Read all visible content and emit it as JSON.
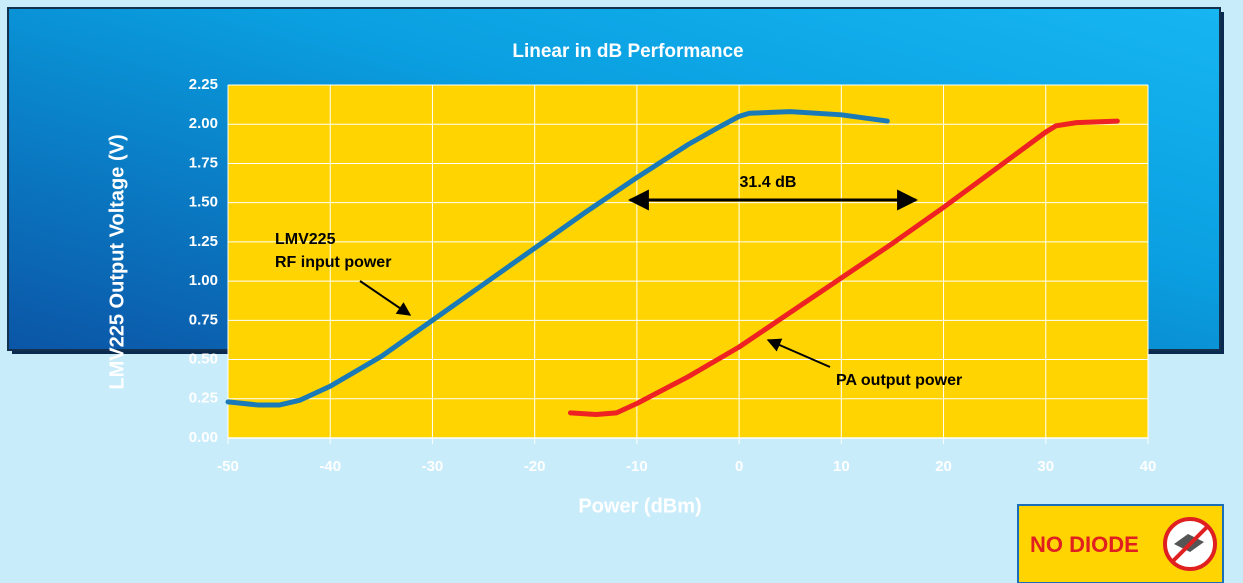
{
  "chart_data": {
    "type": "line",
    "title": "Linear in dB Performance",
    "xlabel": "Power (dBm)",
    "ylabel": "LMV225 Output Voltage (V)",
    "xlim": [
      -50,
      40
    ],
    "ylim": [
      0,
      2.25
    ],
    "xticks": [
      -50,
      -40,
      -30,
      -20,
      -10,
      0,
      10,
      20,
      30,
      40
    ],
    "yticks": [
      {
        "value": 0,
        "label": "0.00"
      },
      {
        "value": 0.25,
        "label": "0.25"
      },
      {
        "value": 0.5,
        "label": "0.50"
      },
      {
        "value": 0.75,
        "label": "0.75"
      },
      {
        "value": 1,
        "label": "1.00"
      },
      {
        "value": 1.25,
        "label": "1.25"
      },
      {
        "value": 1.5,
        "label": "1.50"
      },
      {
        "value": 1.75,
        "label": "1.75"
      },
      {
        "value": 2,
        "label": "2.00"
      },
      {
        "value": 2.25,
        "label": "2.25"
      }
    ],
    "grid": true,
    "series": [
      {
        "color": "#1a7ab8",
        "x": [
          -50,
          -47,
          -45,
          -43,
          -40,
          -35,
          -30,
          -25,
          -20,
          -15,
          -10,
          -5,
          -2,
          0,
          1,
          5,
          10,
          14.5
        ],
        "values": [
          0.23,
          0.21,
          0.21,
          0.24,
          0.33,
          0.52,
          0.75,
          0.98,
          1.21,
          1.44,
          1.66,
          1.87,
          1.98,
          2.05,
          2.07,
          2.08,
          2.06,
          2.02
        ]
      },
      {
        "color": "#ee2222",
        "x": [
          -16.5,
          -14,
          -12,
          -10,
          -5,
          0,
          5,
          10,
          15,
          20,
          25,
          30,
          31,
          33,
          37
        ],
        "values": [
          0.16,
          0.15,
          0.16,
          0.22,
          0.39,
          0.58,
          0.8,
          1.02,
          1.24,
          1.47,
          1.71,
          1.95,
          1.99,
          2.01,
          2.02
        ]
      }
    ],
    "annotations": [
      "31.4 dB",
      "LMV225",
      "RF input power",
      "PA output power"
    ]
  },
  "badge": {
    "text": "NO DIODE"
  }
}
